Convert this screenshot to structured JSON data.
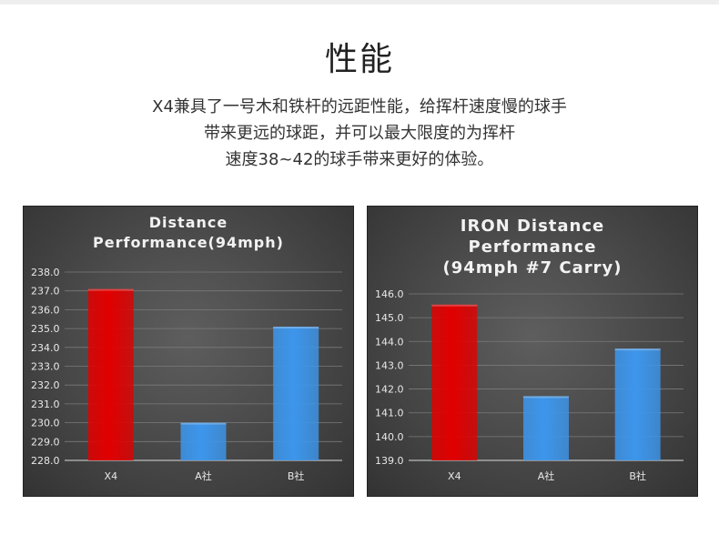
{
  "heading": "性能",
  "intro": [
    "X4兼具了一号木和铁杆的远距性能，给挥杆速度慢的球手",
    "带来更远的球距，并可以最大限度的为挥杆",
    "速度38~42的球手带来更好的体验。"
  ],
  "colors": {
    "highlight": "#e10000",
    "others": "#3d96ec"
  },
  "chart_data": [
    {
      "type": "bar",
      "title_lines": [
        "Distance",
        "Performance(94mph)"
      ],
      "categories": [
        "X4",
        "A社",
        "B社"
      ],
      "values": [
        237.1,
        230.0,
        235.1
      ],
      "ylim": [
        228.0,
        238.0
      ],
      "yticks": [
        "238.0",
        "237.0",
        "236.0",
        "235.0",
        "234.0",
        "233.0",
        "232.0",
        "231.0",
        "230.0",
        "229.0",
        "228.0"
      ],
      "grid": true,
      "legend": "none",
      "bar_colors": [
        "#e10000",
        "#3d96ec",
        "#3d96ec"
      ]
    },
    {
      "type": "bar",
      "title_lines": [
        "IRON Distance",
        "Performance",
        "(94mph #7 Carry)"
      ],
      "categories": [
        "X4",
        "A社",
        "B社"
      ],
      "values": [
        145.55,
        141.7,
        143.7
      ],
      "ylim": [
        139.0,
        146.0
      ],
      "yticks": [
        "146.0",
        "145.0",
        "144.0",
        "143.0",
        "142.0",
        "141.0",
        "140.0",
        "139.0"
      ],
      "grid": true,
      "legend": "none",
      "bar_colors": [
        "#e10000",
        "#3d96ec",
        "#3d96ec"
      ]
    }
  ]
}
